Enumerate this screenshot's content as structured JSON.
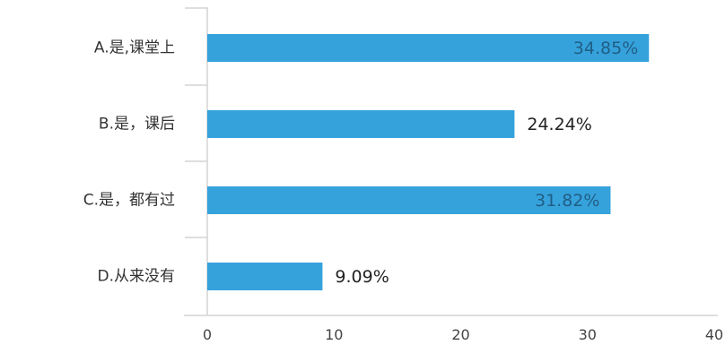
{
  "chart_data": {
    "type": "bar",
    "orientation": "horizontal",
    "title": "",
    "xlabel": "",
    "ylabel": "",
    "categories": [
      "A.是,课堂上",
      "B.是，课后",
      "C.是，都有过",
      "D.从来没有"
    ],
    "values": [
      34.85,
      24.24,
      31.82,
      9.09
    ],
    "data_labels": [
      "34.85%",
      "24.24%",
      "31.82%",
      "9.09%"
    ],
    "xlim": [
      0,
      40
    ],
    "xticks": [
      0,
      10,
      20,
      30,
      40
    ],
    "xtick_labels": [
      "0",
      "10",
      "20",
      "30",
      "40"
    ],
    "grid": false,
    "legend": false,
    "bar_color": "#36A2DC",
    "inside_label_color": "#1f5f86",
    "outside_label_color": "#222222",
    "axis_color": "#d4d4d4"
  }
}
